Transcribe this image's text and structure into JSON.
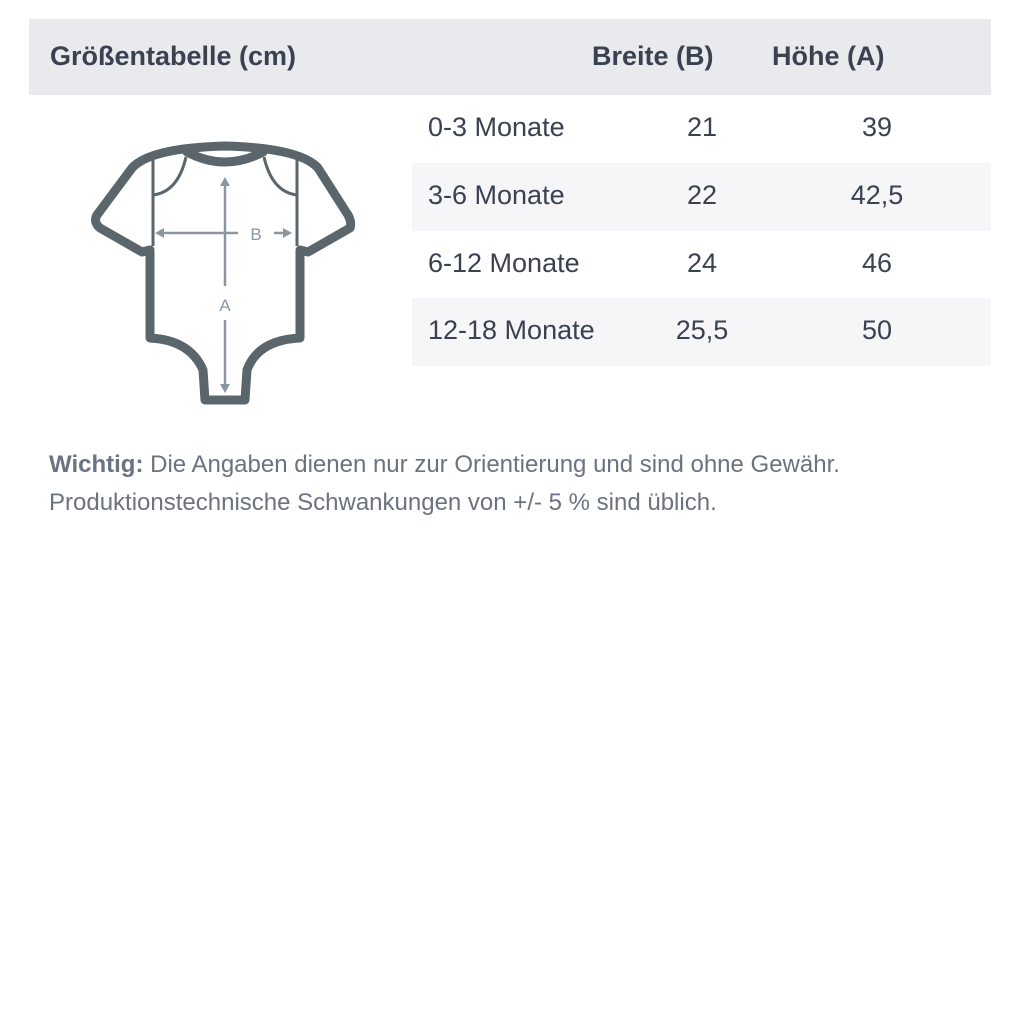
{
  "header": {
    "title": "Größentabelle (cm)",
    "col_width": "Breite (B)",
    "col_height": "Höhe (A)"
  },
  "rows": [
    {
      "size": "0-3 Monate",
      "width": "21",
      "height": "39"
    },
    {
      "size": "3-6 Monate",
      "width": "22",
      "height": "42,5"
    },
    {
      "size": "6-12 Monate",
      "width": "24",
      "height": "46"
    },
    {
      "size": "12-18 Monate",
      "width": "25,5",
      "height": "50"
    }
  ],
  "diagram": {
    "label_b": "B",
    "label_a": "A",
    "icon": "baby-bodysuit-icon"
  },
  "note": {
    "label": "Wichtig:",
    "line1": " Die Angaben dienen nur zur Orientierung und sind ohne Gewähr.",
    "line2": "Produktionstechnische Schwankungen von +/- 5 % sind üblich."
  },
  "colors": {
    "header_bg": "#e9eaee",
    "text": "#3a4150",
    "icon": "#5a656c",
    "measure": "#8a96a0"
  }
}
